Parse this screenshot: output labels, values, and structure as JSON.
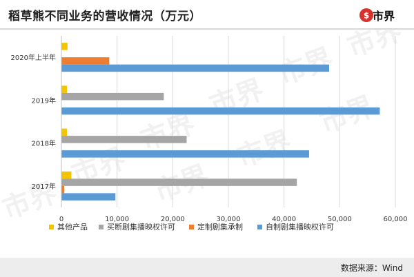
{
  "header": {
    "title": "稻草熊不同业务的营收情况（万元）",
    "logo_text": "市界"
  },
  "footer": {
    "source": "数据来源：Wind"
  },
  "colors": {
    "其他产品": "#f5c400",
    "买断剧集播映权许可": "#a5a5a5",
    "定制剧集承制": "#ed7d31",
    "自制剧集播映权许可": "#5b9bd5",
    "brand": "#d7322c"
  },
  "chart_data": {
    "type": "bar",
    "orientation": "horizontal",
    "title": "稻草熊不同业务的营收情况（万元）",
    "categories": [
      "2017年",
      "2018年",
      "2019年",
      "2020年上半年"
    ],
    "series": [
      {
        "name": "其他产品",
        "values": [
          1800,
          1000,
          1000,
          1100
        ]
      },
      {
        "name": "买断剧集播映权许可",
        "values": [
          42300,
          22500,
          18400,
          0
        ]
      },
      {
        "name": "定制剧集承制",
        "values": [
          500,
          0,
          0,
          8600
        ]
      },
      {
        "name": "自制剧集播映权许可",
        "values": [
          9700,
          44500,
          57200,
          48100
        ]
      }
    ],
    "xlim": [
      0,
      60000
    ],
    "xticks": [
      "0",
      "10,000",
      "20,000",
      "30,000",
      "40,000",
      "50,000",
      "60,000"
    ],
    "legend_position": "bottom",
    "grid": true
  }
}
